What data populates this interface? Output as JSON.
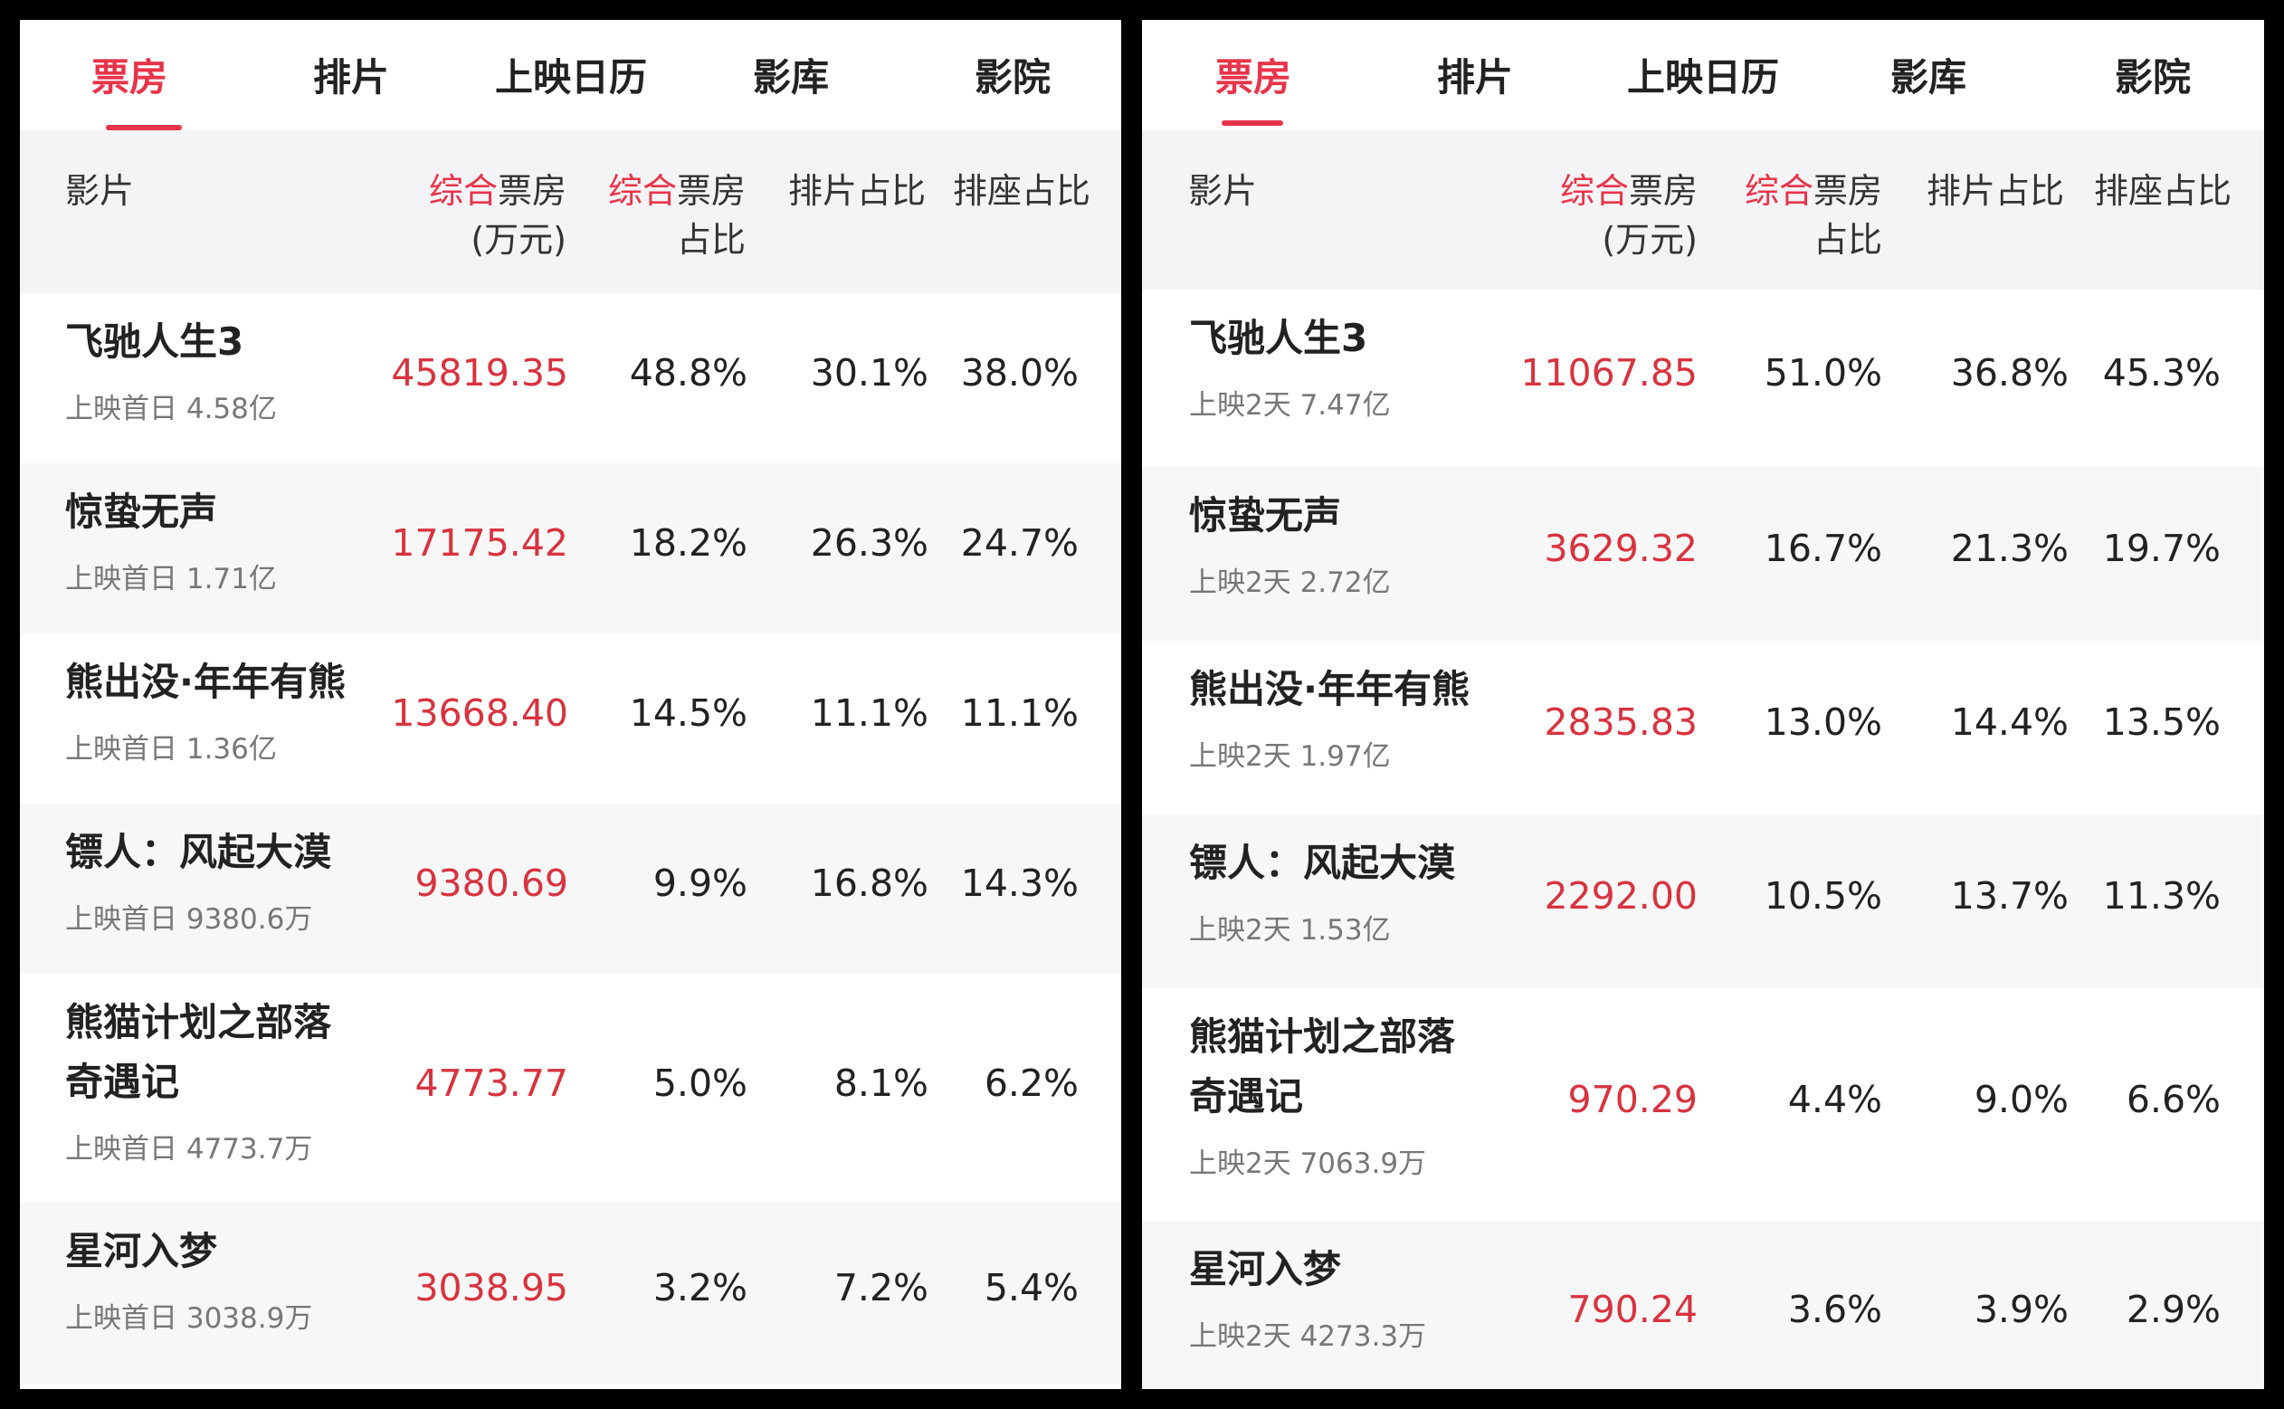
{
  "tabs": [
    "票房",
    "排片",
    "上映日历",
    "影库",
    "影院"
  ],
  "active_tab": 0,
  "colors": {
    "accent": "#e8344a",
    "header_bg": "#f4f4f6",
    "row_alt_bg": "#f7f7f8"
  },
  "columns": {
    "film": "影片",
    "box_red": "综合",
    "box_rest": "票房",
    "box_unit": "(万元)",
    "share_red": "综合",
    "share_rest": "票房",
    "share_line2": "占比",
    "screening": "排片占比",
    "seat": "排座占比"
  },
  "left": {
    "rows": [
      {
        "title": [
          "飞驰人生3"
        ],
        "sub": "上映首日 4.58亿",
        "box": "45819.35",
        "share": "48.8%",
        "screening": "30.1%",
        "seat": "38.0%"
      },
      {
        "title": [
          "惊蛰无声"
        ],
        "sub": "上映首日 1.71亿",
        "box": "17175.42",
        "share": "18.2%",
        "screening": "26.3%",
        "seat": "24.7%"
      },
      {
        "title": [
          "熊出没·年年有熊"
        ],
        "sub": "上映首日 1.36亿",
        "box": "13668.40",
        "share": "14.5%",
        "screening": "11.1%",
        "seat": "11.1%"
      },
      {
        "title": [
          "镖人：风起大漠"
        ],
        "sub": "上映首日 9380.6万",
        "box": "9380.69",
        "share": "9.9%",
        "screening": "16.8%",
        "seat": "14.3%"
      },
      {
        "title": [
          "熊猫计划之部落",
          "奇遇记"
        ],
        "sub": "上映首日 4773.7万",
        "box": "4773.77",
        "share": "5.0%",
        "screening": "8.1%",
        "seat": "6.2%"
      },
      {
        "title": [
          "星河入梦"
        ],
        "sub": "上映首日 3038.9万",
        "box": "3038.95",
        "share": "3.2%",
        "screening": "7.2%",
        "seat": "5.4%"
      }
    ]
  },
  "right": {
    "rows": [
      {
        "title": [
          "飞驰人生3"
        ],
        "sub": "上映2天 7.47亿",
        "box": "11067.85",
        "share": "51.0%",
        "screening": "36.8%",
        "seat": "45.3%"
      },
      {
        "title": [
          "惊蛰无声"
        ],
        "sub": "上映2天 2.72亿",
        "box": "3629.32",
        "share": "16.7%",
        "screening": "21.3%",
        "seat": "19.7%"
      },
      {
        "title": [
          "熊出没·年年有熊"
        ],
        "sub": "上映2天 1.97亿",
        "box": "2835.83",
        "share": "13.0%",
        "screening": "14.4%",
        "seat": "13.5%"
      },
      {
        "title": [
          "镖人：风起大漠"
        ],
        "sub": "上映2天 1.53亿",
        "box": "2292.00",
        "share": "10.5%",
        "screening": "13.7%",
        "seat": "11.3%"
      },
      {
        "title": [
          "熊猫计划之部落",
          "奇遇记"
        ],
        "sub": "上映2天 7063.9万",
        "box": "970.29",
        "share": "4.4%",
        "screening": "9.0%",
        "seat": "6.6%"
      },
      {
        "title": [
          "星河入梦"
        ],
        "sub": "上映2天 4273.3万",
        "box": "790.24",
        "share": "3.6%",
        "screening": "3.9%",
        "seat": "2.9%"
      }
    ]
  }
}
